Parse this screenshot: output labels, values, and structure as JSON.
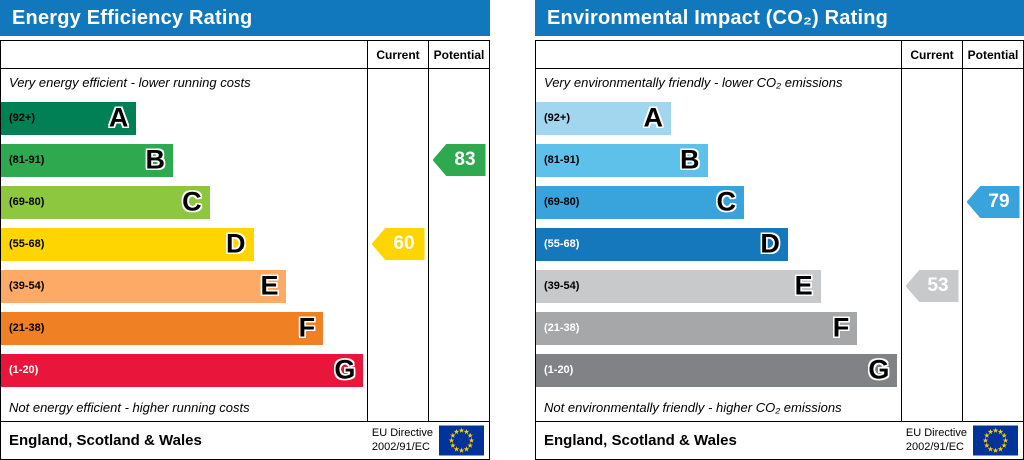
{
  "chart_data": [
    {
      "type": "bar",
      "title": "Energy Efficiency Rating",
      "bands": [
        {
          "letter": "A",
          "range": "92+"
        },
        {
          "letter": "B",
          "range": "81-91"
        },
        {
          "letter": "C",
          "range": "69-80"
        },
        {
          "letter": "D",
          "range": "55-68"
        },
        {
          "letter": "E",
          "range": "39-54"
        },
        {
          "letter": "F",
          "range": "21-38"
        },
        {
          "letter": "G",
          "range": "1-20"
        }
      ],
      "scale": [
        1,
        100
      ],
      "current": 60,
      "current_band": "D",
      "potential": 83,
      "potential_band": "B",
      "top_note": "Very energy efficient - lower running costs",
      "bottom_note": "Not energy efficient - higher running costs"
    },
    {
      "type": "bar",
      "title": "Environmental Impact (CO₂) Rating",
      "bands": [
        {
          "letter": "A",
          "range": "92+"
        },
        {
          "letter": "B",
          "range": "81-91"
        },
        {
          "letter": "C",
          "range": "69-80"
        },
        {
          "letter": "D",
          "range": "55-68"
        },
        {
          "letter": "E",
          "range": "39-54"
        },
        {
          "letter": "F",
          "range": "21-38"
        },
        {
          "letter": "G",
          "range": "1-20"
        }
      ],
      "scale": [
        1,
        100
      ],
      "current": 53,
      "current_band": "E",
      "potential": 79,
      "potential_band": "C",
      "top_note": "Very environmentally friendly - lower CO₂ emissions",
      "bottom_note": "Not environmentally friendly - higher CO₂ emissions"
    }
  ],
  "panels": [
    {
      "title": "Energy Efficiency Rating",
      "header_color": "#1278be",
      "columns": {
        "current": "Current",
        "potential": "Potential"
      },
      "top_note": "Very energy efficient - lower running costs",
      "bottom_note": "Not energy efficient - higher running costs",
      "footer": {
        "region": "England, Scotland & Wales",
        "directive_line1": "EU Directive",
        "directive_line2": "2002/91/EC"
      },
      "bands": [
        {
          "range": "(92+)",
          "letter": "A",
          "color": "#008054",
          "width_pct": 37,
          "label_color": "#000000"
        },
        {
          "range": "(81-91)",
          "letter": "B",
          "color": "#2ea94f",
          "width_pct": 47,
          "label_color": "#000000"
        },
        {
          "range": "(69-80)",
          "letter": "C",
          "color": "#8dc63f",
          "width_pct": 57,
          "label_color": "#000000"
        },
        {
          "range": "(55-68)",
          "letter": "D",
          "color": "#ffd500",
          "width_pct": 69,
          "label_color": "#000000"
        },
        {
          "range": "(39-54)",
          "letter": "E",
          "color": "#fcaa65",
          "width_pct": 78,
          "label_color": "#000000"
        },
        {
          "range": "(21-38)",
          "letter": "F",
          "color": "#ef8023",
          "width_pct": 88,
          "label_color": "#000000"
        },
        {
          "range": "(1-20)",
          "letter": "G",
          "color": "#e9153b",
          "width_pct": 99,
          "label_color": "#ffffff"
        }
      ],
      "current": {
        "value": "60",
        "band_index": 3,
        "color": "#ffd500",
        "text_color": "#ffffff"
      },
      "potential": {
        "value": "83",
        "band_index": 1,
        "color": "#2ea94f",
        "text_color": "#ffffff"
      }
    },
    {
      "title": "Environmental Impact (CO₂) Rating",
      "header_color": "#1278be",
      "columns": {
        "current": "Current",
        "potential": "Potential"
      },
      "top_note": "Very environmentally friendly - lower CO₂ emissions",
      "bottom_note": "Not environmentally friendly - higher CO₂ emissions",
      "footer": {
        "region": "England, Scotland & Wales",
        "directive_line1": "EU Directive",
        "directive_line2": "2002/91/EC"
      },
      "bands": [
        {
          "range": "(92+)",
          "letter": "A",
          "color": "#a2d6ee",
          "width_pct": 37,
          "label_color": "#000000"
        },
        {
          "range": "(81-91)",
          "letter": "B",
          "color": "#5ec1e9",
          "width_pct": 47,
          "label_color": "#000000"
        },
        {
          "range": "(69-80)",
          "letter": "C",
          "color": "#39a3dc",
          "width_pct": 57,
          "label_color": "#000000"
        },
        {
          "range": "(55-68)",
          "letter": "D",
          "color": "#1578bd",
          "width_pct": 69,
          "label_color": "#ffffff"
        },
        {
          "range": "(39-54)",
          "letter": "E",
          "color": "#c8c9cb",
          "width_pct": 78,
          "label_color": "#000000"
        },
        {
          "range": "(21-38)",
          "letter": "F",
          "color": "#a5a7a9",
          "width_pct": 88,
          "label_color": "#ffffff"
        },
        {
          "range": "(1-20)",
          "letter": "G",
          "color": "#808285",
          "width_pct": 99,
          "label_color": "#ffffff"
        }
      ],
      "current": {
        "value": "53",
        "band_index": 4,
        "color": "#c8c9cb",
        "text_color": "#ffffff"
      },
      "potential": {
        "value": "79",
        "band_index": 2,
        "color": "#39a3dc",
        "text_color": "#ffffff"
      }
    }
  ],
  "flag": {
    "background": "#003399",
    "star_color": "#ffcc00"
  }
}
